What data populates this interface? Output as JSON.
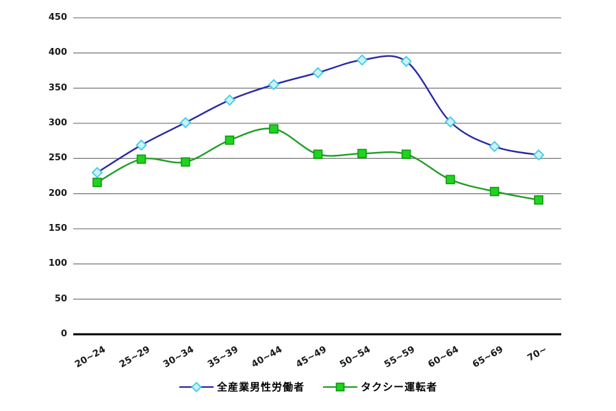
{
  "chart_data": {
    "type": "line",
    "title": "",
    "xlabel": "",
    "ylabel": "",
    "categories": [
      "20~24",
      "25~29",
      "30~34",
      "35~39",
      "40~44",
      "45~49",
      "50~54",
      "55~59",
      "60~64",
      "65~69",
      "70~"
    ],
    "series": [
      {
        "name": "全産業男性労働者",
        "values": [
          230,
          269,
          301,
          333,
          355,
          372,
          390,
          388,
          302,
          267,
          255
        ],
        "line_color": "#2929A3",
        "marker": "diamond",
        "marker_fill": "#C9F2F8",
        "marker_stroke": "#41CCE0"
      },
      {
        "name": "タクシー運転者",
        "values": [
          216,
          249,
          245,
          276,
          292,
          256,
          257,
          256,
          220,
          203,
          191
        ],
        "line_color": "#1F9E26",
        "marker": "square",
        "marker_fill": "#1FD41F",
        "marker_stroke": "#0F9B0F"
      }
    ],
    "ylim": [
      0,
      450
    ],
    "y_ticks": [
      0,
      50,
      100,
      150,
      200,
      250,
      300,
      350,
      400,
      450
    ],
    "grid": true,
    "gridline_color": "#7f7f7f",
    "axis_color": "#000000",
    "legend_position": "bottom",
    "smoothed": true
  }
}
